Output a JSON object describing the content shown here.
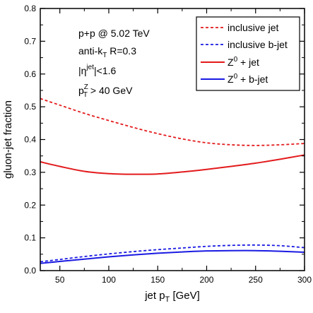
{
  "chart_data": {
    "type": "line",
    "xlabel": "jet p",
    "xlabel_sub": "T",
    "xlabel_unit": " [GeV]",
    "ylabel": "gluon-jet fraction",
    "xlim": [
      30,
      300
    ],
    "ylim": [
      0,
      0.8
    ],
    "xticks": [
      50,
      100,
      150,
      200,
      250,
      300
    ],
    "yticks": [
      0.0,
      0.1,
      0.2,
      0.3,
      0.4,
      0.5,
      0.6,
      0.7,
      0.8
    ],
    "ytick_labels": [
      "0.0",
      "0.1",
      "0.2",
      "0.3",
      "0.4",
      "0.5",
      "0.6",
      "0.7",
      "0.8"
    ],
    "annotations": {
      "line1": "p+p @ 5.02 TeV",
      "line2_main": "anti-k",
      "line2_sub": "T",
      "line2_rest": " R=0.3",
      "line3_main": "|η",
      "line3_sup": "jet",
      "line3_rest": "|<1.6",
      "line4_main": "p",
      "line4_sup": "Z",
      "line4_sub": "T",
      "line4_rest": " > 40 GeV"
    },
    "legend_position": "top-right",
    "series": [
      {
        "name": "inclusive jet",
        "legend_main": "inclusive jet",
        "legend_sup": "",
        "legend_rest": "",
        "color": "#e31a1c",
        "dash": "dashed",
        "x": [
          30,
          50,
          75,
          100,
          125,
          150,
          175,
          200,
          225,
          250,
          275,
          300
        ],
        "y": [
          0.525,
          0.505,
          0.48,
          0.458,
          0.437,
          0.418,
          0.402,
          0.39,
          0.384,
          0.382,
          0.384,
          0.388
        ]
      },
      {
        "name": "inclusive b-jet",
        "legend_main": "inclusive b-jet",
        "legend_sup": "",
        "legend_rest": "",
        "color": "#1a1ae3",
        "dash": "dashed",
        "x": [
          30,
          50,
          75,
          100,
          125,
          150,
          175,
          200,
          225,
          250,
          275,
          300
        ],
        "y": [
          0.027,
          0.034,
          0.043,
          0.051,
          0.058,
          0.064,
          0.069,
          0.074,
          0.077,
          0.078,
          0.076,
          0.07
        ]
      },
      {
        "name": "Z0 + jet",
        "legend_main": "Z",
        "legend_sup": "0",
        "legend_rest": " + jet",
        "color": "#e31a1c",
        "dash": "solid",
        "x": [
          30,
          50,
          75,
          100,
          125,
          150,
          175,
          200,
          225,
          250,
          275,
          300
        ],
        "y": [
          0.332,
          0.318,
          0.303,
          0.296,
          0.294,
          0.295,
          0.301,
          0.309,
          0.318,
          0.328,
          0.34,
          0.353
        ]
      },
      {
        "name": "Z0 + b-jet",
        "legend_main": "Z",
        "legend_sup": "0",
        "legend_rest": " + b-jet",
        "color": "#1a1ae3",
        "dash": "solid",
        "x": [
          30,
          50,
          75,
          100,
          125,
          150,
          175,
          200,
          225,
          250,
          275,
          300
        ],
        "y": [
          0.022,
          0.028,
          0.035,
          0.042,
          0.048,
          0.053,
          0.057,
          0.06,
          0.061,
          0.061,
          0.059,
          0.056
        ]
      }
    ]
  }
}
